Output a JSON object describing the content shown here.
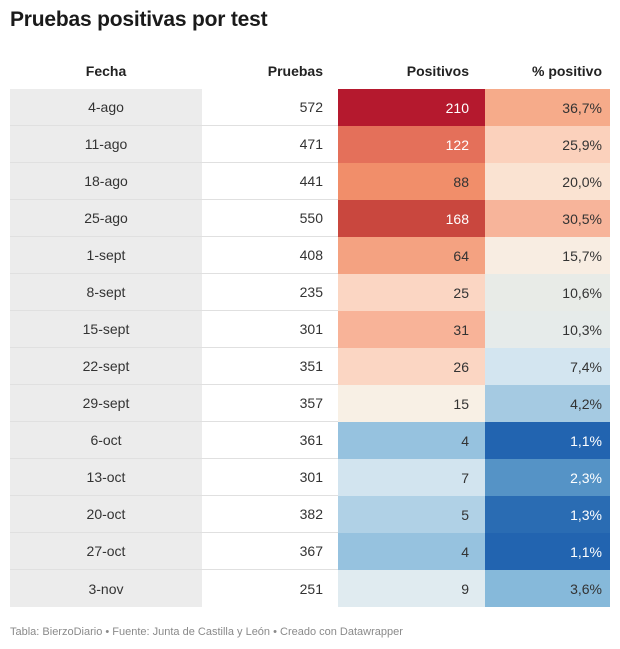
{
  "title": "Pruebas positivas por test",
  "footer": "Tabla: BierzoDiario • Fuente: Junta de Castilla y León • Creado con Datawrapper",
  "chart_data": {
    "type": "table",
    "columns": [
      "Fecha",
      "Pruebas",
      "Positivos",
      "% positivo"
    ],
    "rows": [
      {
        "fecha": "4-ago",
        "pruebas": "572",
        "positivos": "210",
        "pct": "36,7%",
        "pos_color": "#b5192e",
        "pct_color": "#f6ab8a"
      },
      {
        "fecha": "11-ago",
        "pruebas": "471",
        "positivos": "122",
        "pct": "25,9%",
        "pos_color": "#e4705a",
        "pct_color": "#fbd1bc"
      },
      {
        "fecha": "18-ago",
        "pruebas": "441",
        "positivos": "88",
        "pct": "20,0%",
        "pos_color": "#f18e6a",
        "pct_color": "#fae3d2"
      },
      {
        "fecha": "25-ago",
        "pruebas": "550",
        "positivos": "168",
        "pct": "30,5%",
        "pos_color": "#c9473e",
        "pct_color": "#f7b49a"
      },
      {
        "fecha": "1-sept",
        "pruebas": "408",
        "positivos": "64",
        "pct": "15,7%",
        "pos_color": "#f4a281",
        "pct_color": "#f8ede2"
      },
      {
        "fecha": "8-sept",
        "pruebas": "235",
        "positivos": "25",
        "pct": "10,6%",
        "pos_color": "#fbd6c3",
        "pct_color": "#e8ebe7"
      },
      {
        "fecha": "15-sept",
        "pruebas": "301",
        "positivos": "31",
        "pct": "10,3%",
        "pos_color": "#f8b398",
        "pct_color": "#e6ebea"
      },
      {
        "fecha": "22-sept",
        "pruebas": "351",
        "positivos": "26",
        "pct": "7,4%",
        "pos_color": "#fbd6c3",
        "pct_color": "#d3e5f0"
      },
      {
        "fecha": "29-sept",
        "pruebas": "357",
        "positivos": "15",
        "pct": "4,2%",
        "pos_color": "#f8f0e5",
        "pct_color": "#a5cae2"
      },
      {
        "fecha": "6-oct",
        "pruebas": "361",
        "positivos": "4",
        "pct": "1,1%",
        "pos_color": "#96c2df",
        "pct_color": "#2264b0"
      },
      {
        "fecha": "13-oct",
        "pruebas": "301",
        "positivos": "7",
        "pct": "2,3%",
        "pos_color": "#d2e4ef",
        "pct_color": "#5593c6"
      },
      {
        "fecha": "20-oct",
        "pruebas": "382",
        "positivos": "5",
        "pct": "1,3%",
        "pos_color": "#b0d1e6",
        "pct_color": "#2a6cb3"
      },
      {
        "fecha": "27-oct",
        "pruebas": "367",
        "positivos": "4",
        "pct": "1,1%",
        "pos_color": "#96c2df",
        "pct_color": "#2264b0"
      },
      {
        "fecha": "3-nov",
        "pruebas": "251",
        "positivos": "9",
        "pct": "3,6%",
        "pos_color": "#e0ebf0",
        "pct_color": "#86b9da"
      }
    ]
  }
}
